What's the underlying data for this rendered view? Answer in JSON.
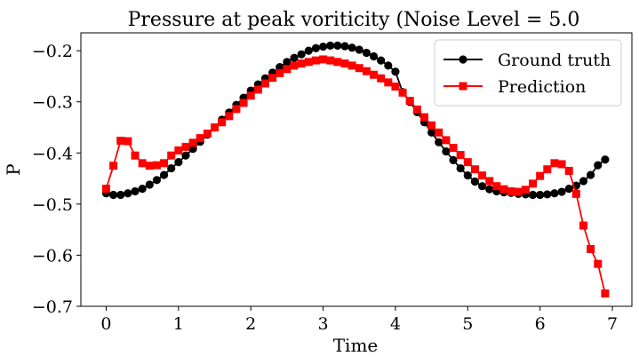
{
  "chart_data": {
    "type": "line",
    "title": "Pressure at peak voriticity (Noise Level = 5.0",
    "xlabel": "Time",
    "ylabel": "P",
    "xlim": [
      -0.35,
      7.27
    ],
    "ylim": [
      -0.7,
      -0.165
    ],
    "xticks": [
      0,
      1,
      2,
      3,
      4,
      5,
      6,
      7
    ],
    "yticks": [
      -0.7,
      -0.6,
      -0.5,
      -0.4,
      -0.3,
      -0.2
    ],
    "xtick_labels": [
      "0",
      "1",
      "2",
      "3",
      "4",
      "5",
      "6",
      "7"
    ],
    "ytick_labels": [
      "−0.7",
      "−0.6",
      "−0.5",
      "−0.4",
      "−0.3",
      "−0.2"
    ],
    "grid": false,
    "legend_position": "top-right",
    "series": [
      {
        "name": "Ground truth",
        "color": "#000000",
        "marker": "circle",
        "x": [
          0.0,
          0.1,
          0.2,
          0.3,
          0.4,
          0.5,
          0.6,
          0.7,
          0.8,
          0.9,
          1.0,
          1.1,
          1.2,
          1.3,
          1.4,
          1.5,
          1.6,
          1.7,
          1.8,
          1.9,
          2.0,
          2.1,
          2.2,
          2.3,
          2.4,
          2.5,
          2.6,
          2.7,
          2.8,
          2.9,
          3.0,
          3.1,
          3.2,
          3.3,
          3.4,
          3.5,
          3.6,
          3.7,
          3.8,
          3.9,
          4.0,
          4.1,
          4.2,
          4.3,
          4.4,
          4.5,
          4.6,
          4.7,
          4.8,
          4.9,
          5.0,
          5.1,
          5.2,
          5.3,
          5.4,
          5.5,
          5.6,
          5.7,
          5.8,
          5.9,
          6.0,
          6.1,
          6.2,
          6.3,
          6.4,
          6.5,
          6.6,
          6.7,
          6.8,
          6.9
        ],
        "values": [
          -0.479,
          -0.482,
          -0.482,
          -0.479,
          -0.475,
          -0.47,
          -0.462,
          -0.453,
          -0.443,
          -0.43,
          -0.418,
          -0.405,
          -0.392,
          -0.378,
          -0.364,
          -0.35,
          -0.335,
          -0.321,
          -0.306,
          -0.292,
          -0.278,
          -0.266,
          -0.254,
          -0.243,
          -0.232,
          -0.222,
          -0.214,
          -0.207,
          -0.2,
          -0.195,
          -0.192,
          -0.19,
          -0.19,
          -0.191,
          -0.194,
          -0.198,
          -0.204,
          -0.211,
          -0.219,
          -0.229,
          -0.241,
          -0.281,
          -0.3,
          -0.32,
          -0.34,
          -0.36,
          -0.379,
          -0.397,
          -0.414,
          -0.43,
          -0.444,
          -0.456,
          -0.465,
          -0.471,
          -0.475,
          -0.477,
          -0.478,
          -0.48,
          -0.481,
          -0.482,
          -0.482,
          -0.481,
          -0.479,
          -0.476,
          -0.47,
          -0.464,
          -0.455,
          -0.443,
          -0.424,
          -0.413
        ]
      },
      {
        "name": "Prediction",
        "color": "#ff0000",
        "marker": "square",
        "x": [
          0.0,
          0.1,
          0.2,
          0.3,
          0.4,
          0.5,
          0.6,
          0.7,
          0.8,
          0.9,
          1.0,
          1.1,
          1.2,
          1.3,
          1.4,
          1.5,
          1.6,
          1.7,
          1.8,
          1.9,
          2.0,
          2.1,
          2.2,
          2.3,
          2.4,
          2.5,
          2.6,
          2.7,
          2.8,
          2.9,
          3.0,
          3.1,
          3.2,
          3.3,
          3.4,
          3.5,
          3.6,
          3.7,
          3.8,
          3.9,
          4.0,
          4.1,
          4.2,
          4.3,
          4.4,
          4.5,
          4.6,
          4.7,
          4.8,
          4.9,
          5.0,
          5.1,
          5.2,
          5.3,
          5.4,
          5.5,
          5.6,
          5.7,
          5.8,
          5.9,
          6.0,
          6.1,
          6.2,
          6.3,
          6.4,
          6.5,
          6.6,
          6.7,
          6.8,
          6.9
        ],
        "values": [
          -0.47,
          -0.425,
          -0.376,
          -0.377,
          -0.405,
          -0.42,
          -0.425,
          -0.424,
          -0.42,
          -0.405,
          -0.395,
          -0.388,
          -0.38,
          -0.371,
          -0.362,
          -0.35,
          -0.34,
          -0.328,
          -0.314,
          -0.302,
          -0.288,
          -0.276,
          -0.264,
          -0.253,
          -0.244,
          -0.236,
          -0.229,
          -0.225,
          -0.222,
          -0.219,
          -0.217,
          -0.219,
          -0.222,
          -0.225,
          -0.229,
          -0.234,
          -0.24,
          -0.247,
          -0.254,
          -0.262,
          -0.27,
          -0.282,
          -0.298,
          -0.315,
          -0.33,
          -0.346,
          -0.36,
          -0.375,
          -0.39,
          -0.404,
          -0.418,
          -0.432,
          -0.444,
          -0.455,
          -0.465,
          -0.471,
          -0.475,
          -0.476,
          -0.472,
          -0.46,
          -0.445,
          -0.432,
          -0.42,
          -0.422,
          -0.435,
          -0.48,
          -0.542,
          -0.588,
          -0.617,
          -0.675
        ]
      }
    ]
  }
}
